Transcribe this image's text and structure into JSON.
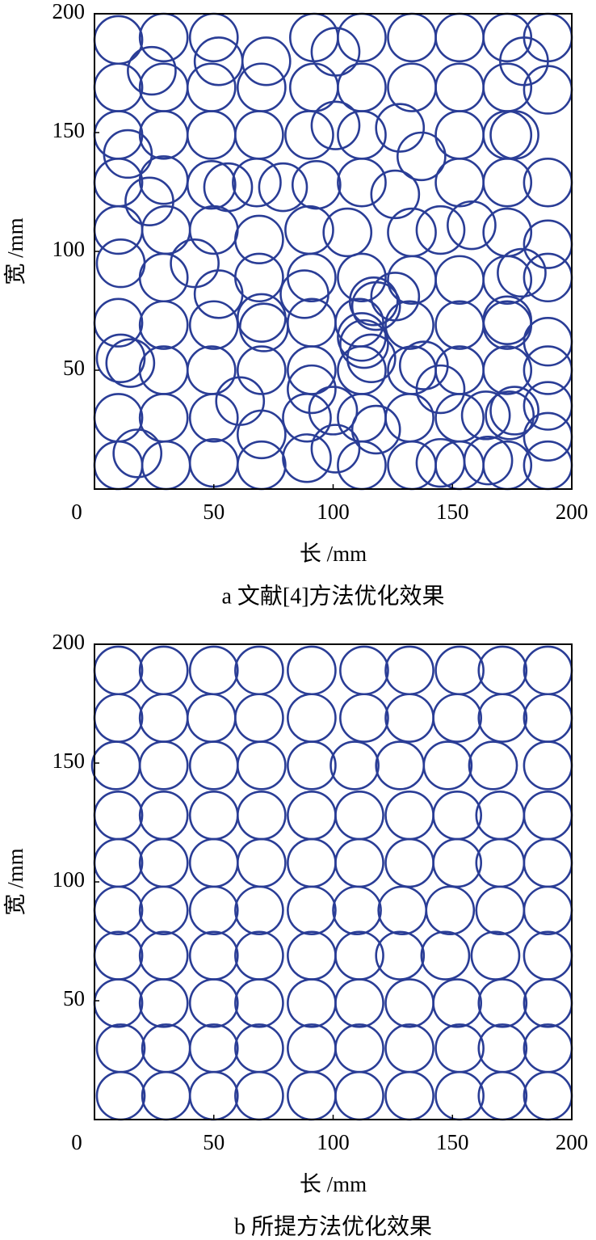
{
  "chart_data": [
    {
      "type": "scatter",
      "caption": "a 文献[4]方法优化效果",
      "xlabel": "长 /mm",
      "ylabel": "宽 /mm",
      "color": "#2a3d96",
      "marker_radius": 10,
      "xlim": [
        0,
        200
      ],
      "ylim": [
        0,
        200
      ],
      "xticks": [
        0,
        50,
        100,
        150,
        200
      ],
      "yticks": [
        50,
        100,
        150,
        200
      ],
      "x": [
        10,
        29,
        50,
        52,
        72,
        92,
        101,
        112,
        133,
        153,
        173,
        180,
        190,
        10,
        24,
        29,
        49,
        70,
        92,
        112,
        133,
        153,
        173,
        190,
        10,
        14,
        29,
        49,
        69,
        90,
        101,
        112,
        128,
        137,
        153,
        173,
        176,
        10,
        29,
        23,
        49,
        56,
        68,
        79,
        93,
        112,
        126,
        153,
        173,
        190,
        10,
        30,
        42,
        50,
        69,
        90,
        106,
        133,
        145,
        158,
        173,
        190,
        11,
        29,
        52,
        69,
        88,
        91,
        112,
        117,
        126,
        133,
        153,
        173,
        179,
        190,
        10,
        29,
        50,
        70,
        71,
        91,
        111,
        113,
        112,
        118,
        132,
        153,
        173,
        173,
        190,
        11,
        15,
        29,
        49,
        61,
        70,
        91,
        91,
        112,
        116,
        133,
        138,
        145,
        153,
        173,
        190,
        10,
        29,
        50,
        70,
        89,
        100,
        112,
        118,
        132,
        153,
        164,
        174,
        176,
        190,
        190,
        10,
        18,
        30,
        50,
        70,
        89,
        101,
        112,
        133,
        145,
        153,
        165,
        173,
        190
      ],
      "y": [
        189,
        190,
        190,
        180,
        180,
        190,
        184,
        190,
        190,
        190,
        190,
        180,
        190,
        169,
        176,
        169,
        169,
        169,
        169,
        169,
        169,
        169,
        169,
        168,
        149,
        141,
        149,
        149,
        149,
        149,
        153,
        149,
        152,
        140,
        149,
        149,
        149,
        129,
        130,
        121,
        128,
        127,
        129,
        127,
        128,
        129,
        124,
        129,
        129,
        129,
        109,
        109,
        95,
        109,
        105,
        109,
        108,
        108,
        109,
        111,
        108,
        103,
        95,
        89,
        82,
        89,
        82,
        89,
        89,
        79,
        81,
        88,
        88,
        88,
        91,
        89,
        70,
        69,
        69,
        72,
        68,
        70,
        70,
        61,
        64,
        77,
        69,
        69,
        69,
        71,
        62,
        55,
        53,
        50,
        50,
        37,
        50,
        50,
        42,
        50,
        55,
        50,
        52,
        42,
        50,
        50,
        50,
        30,
        30,
        30,
        23,
        30,
        33,
        30,
        25,
        30,
        30,
        31,
        31,
        33,
        35,
        22,
        10,
        15,
        10,
        11,
        10,
        13,
        17,
        10,
        10,
        11,
        10,
        12,
        10,
        10
      ]
    },
    {
      "type": "scatter",
      "caption": "b 所提方法优化效果",
      "xlabel": "长 /mm",
      "ylabel": "宽 /mm",
      "color": "#2a3d96",
      "marker_radius": 10,
      "xlim": [
        0,
        200
      ],
      "ylim": [
        0,
        200
      ],
      "xticks": [
        0,
        50,
        100,
        150,
        200
      ],
      "yticks": [
        50,
        100,
        150,
        200
      ],
      "x": [
        10,
        29,
        50,
        69,
        91,
        113,
        132,
        153,
        171,
        190,
        10,
        29,
        49,
        69,
        91,
        113,
        132,
        152,
        171,
        190,
        9,
        29,
        50,
        70,
        91,
        109,
        128,
        148,
        167,
        190,
        10,
        29,
        50,
        70,
        91,
        111,
        132,
        152,
        170,
        190,
        10,
        29,
        50,
        70,
        91,
        111,
        132,
        152,
        170,
        190,
        10,
        29,
        50,
        69,
        91,
        110,
        129,
        149,
        170,
        190,
        10,
        29,
        50,
        69,
        91,
        111,
        128,
        147,
        168,
        190,
        10,
        29,
        50,
        69,
        91,
        111,
        132,
        152,
        171,
        190,
        11,
        30,
        50,
        69,
        91,
        111,
        132,
        153,
        171,
        190,
        11,
        30,
        50,
        69,
        91,
        111,
        132,
        153,
        171,
        190
      ],
      "y": [
        189,
        189,
        189,
        189,
        189,
        189,
        189,
        189,
        189,
        189,
        169,
        169,
        169,
        169,
        169,
        169,
        169,
        169,
        169,
        169,
        149,
        149,
        149,
        149,
        149,
        149,
        149,
        149,
        149,
        149,
        128,
        128,
        128,
        128,
        128,
        128,
        128,
        128,
        128,
        128,
        108,
        108,
        108,
        108,
        108,
        108,
        108,
        108,
        108,
        108,
        88,
        88,
        88,
        88,
        88,
        88,
        88,
        88,
        88,
        88,
        69,
        69,
        69,
        69,
        69,
        69,
        69,
        69,
        69,
        69,
        49,
        49,
        49,
        49,
        49,
        49,
        49,
        49,
        49,
        49,
        30,
        30,
        30,
        30,
        30,
        30,
        30,
        30,
        30,
        30,
        10,
        10,
        10,
        10,
        10,
        10,
        10,
        10,
        10,
        10
      ]
    }
  ]
}
